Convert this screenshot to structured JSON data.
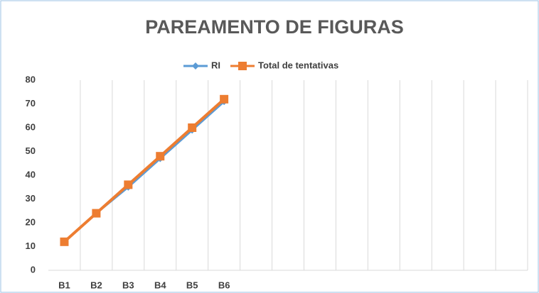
{
  "chart_data": {
    "type": "line",
    "title": "PAREAMENTO DE FIGURAS",
    "categories": [
      "B1",
      "B2",
      "B3",
      "B4",
      "B5",
      "B6",
      null,
      null,
      null,
      null,
      null,
      null,
      null,
      null,
      null
    ],
    "series": [
      {
        "name": "RI",
        "color": "#5b9bd5",
        "marker": "diamond",
        "values": [
          12,
          24,
          35,
          47,
          59,
          71,
          null,
          null,
          null,
          null,
          null,
          null,
          null,
          null,
          null
        ]
      },
      {
        "name": "Total de tentativas",
        "color": "#ed7d31",
        "marker": "square",
        "values": [
          12,
          24,
          36,
          48,
          60,
          72,
          null,
          null,
          null,
          null,
          null,
          null,
          null,
          null,
          null
        ]
      }
    ],
    "ylim": [
      0,
      80
    ],
    "yticks": [
      0,
      10,
      20,
      30,
      40,
      50,
      60,
      70,
      80
    ],
    "grid": "vertical",
    "legend": "top"
  }
}
